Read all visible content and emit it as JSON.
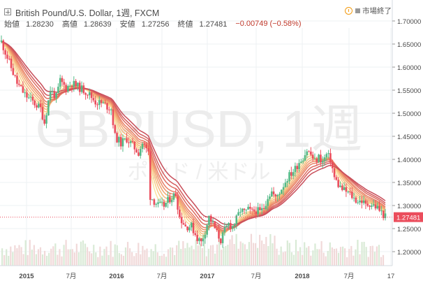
{
  "header": {
    "title": "British Pound/U.S. Dollar, 1週, FXCM",
    "open_label": "始値",
    "open": "1.28230",
    "high_label": "高値",
    "high": "1.28639",
    "low_label": "安値",
    "low": "1.27256",
    "close_label": "終値",
    "close": "1.27481",
    "change": "−0.00749 (−0.58%)",
    "market_status": "市場終了"
  },
  "watermark": {
    "symbol": "GBPUSD, 1週",
    "name": "ポンド / 米ドル"
  },
  "chart_data": {
    "type": "candlestick",
    "ylim": [
      1.18,
      1.72
    ],
    "y_ticks": [
      "1.70000",
      "1.65000",
      "1.60000",
      "1.55000",
      "1.50000",
      "1.45000",
      "1.40000",
      "1.35000",
      "1.30000",
      "1.25000",
      "1.20000"
    ],
    "x_ticks": [
      "2015",
      "7月",
      "2016",
      "7月",
      "2017",
      "7月",
      "2018",
      "7月",
      "17"
    ],
    "last_price_label": "1.27481",
    "last_price": 1.27481,
    "trend_path": [
      [
        0,
        1.655
      ],
      [
        4,
        1.61
      ],
      [
        8,
        1.565
      ],
      [
        12,
        1.54
      ],
      [
        16,
        1.525
      ],
      [
        20,
        1.51
      ],
      [
        22,
        1.48
      ],
      [
        25,
        1.55
      ],
      [
        28,
        1.535
      ],
      [
        30,
        1.57
      ],
      [
        33,
        1.555
      ],
      [
        36,
        1.565
      ],
      [
        40,
        1.555
      ],
      [
        44,
        1.545
      ],
      [
        48,
        1.525
      ],
      [
        52,
        1.52
      ],
      [
        56,
        1.51
      ],
      [
        58,
        1.45
      ],
      [
        61,
        1.435
      ],
      [
        64,
        1.445
      ],
      [
        67,
        1.43
      ],
      [
        70,
        1.415
      ],
      [
        72,
        1.435
      ],
      [
        75,
        1.415
      ],
      [
        76,
        1.32
      ],
      [
        78,
        1.31
      ],
      [
        80,
        1.3
      ],
      [
        83,
        1.3
      ],
      [
        86,
        1.315
      ],
      [
        89,
        1.325
      ],
      [
        91,
        1.275
      ],
      [
        94,
        1.255
      ],
      [
        97,
        1.255
      ],
      [
        100,
        1.23
      ],
      [
        102,
        1.22
      ],
      [
        104,
        1.245
      ],
      [
        106,
        1.275
      ],
      [
        108,
        1.26
      ],
      [
        110,
        1.24
      ],
      [
        112,
        1.225
      ],
      [
        114,
        1.245
      ],
      [
        116,
        1.26
      ],
      [
        118,
        1.255
      ],
      [
        120,
        1.27
      ],
      [
        122,
        1.29
      ],
      [
        124,
        1.285
      ],
      [
        126,
        1.29
      ],
      [
        128,
        1.285
      ],
      [
        130,
        1.29
      ],
      [
        132,
        1.285
      ],
      [
        134,
        1.295
      ],
      [
        136,
        1.32
      ],
      [
        138,
        1.33
      ],
      [
        140,
        1.315
      ],
      [
        142,
        1.33
      ],
      [
        144,
        1.345
      ],
      [
        146,
        1.36
      ],
      [
        148,
        1.37
      ],
      [
        150,
        1.38
      ],
      [
        152,
        1.395
      ],
      [
        154,
        1.405
      ],
      [
        156,
        1.42
      ],
      [
        158,
        1.41
      ],
      [
        160,
        1.395
      ],
      [
        162,
        1.405
      ],
      [
        164,
        1.395
      ],
      [
        166,
        1.41
      ],
      [
        168,
        1.4
      ],
      [
        170,
        1.36
      ],
      [
        172,
        1.345
      ],
      [
        174,
        1.335
      ],
      [
        176,
        1.33
      ],
      [
        178,
        1.325
      ],
      [
        180,
        1.315
      ],
      [
        182,
        1.31
      ],
      [
        184,
        1.31
      ],
      [
        186,
        1.3
      ],
      [
        188,
        1.305
      ],
      [
        190,
        1.3
      ],
      [
        192,
        1.295
      ],
      [
        194,
        1.285
      ],
      [
        196,
        1.275
      ]
    ]
  }
}
